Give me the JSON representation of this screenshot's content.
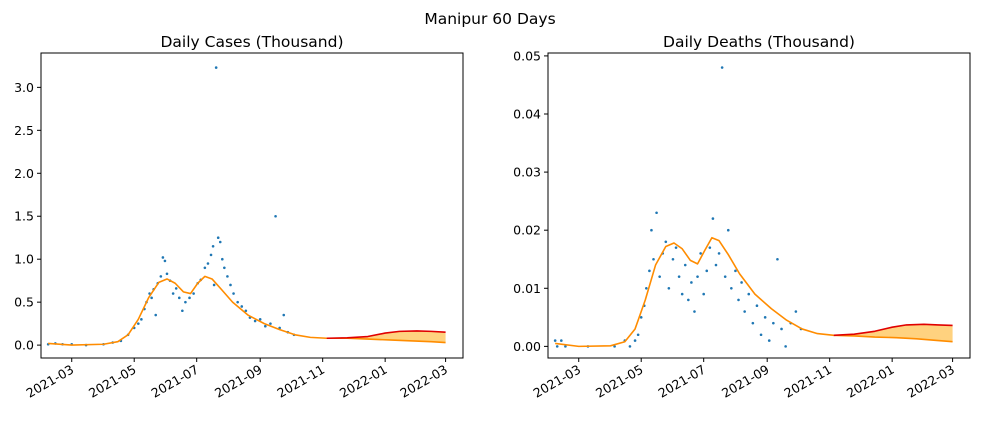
{
  "suptitle": "Manipur 60 Days",
  "colors": {
    "points": "#1f77b4",
    "fit": "#ff8c00",
    "upper_forecast": "#e00000",
    "band_fill": "#ffd27f",
    "axes": "#000000"
  },
  "chart_data": [
    {
      "type": "scatter",
      "title": "Daily Cases (Thousand)",
      "xlabel": "",
      "ylabel": "",
      "x_ticks": [
        "2021-03",
        "2021-05",
        "2021-07",
        "2021-09",
        "2021-11",
        "2022-01",
        "2022-03"
      ],
      "y_ticks": [
        0.0,
        0.5,
        1.0,
        1.5,
        2.0,
        2.5,
        3.0
      ],
      "y_tick_labels": [
        "0.0",
        "0.5",
        "1.0",
        "1.5",
        "2.0",
        "2.5",
        "3.0"
      ],
      "xlim": [
        "2021-01-30",
        "2022-03-18"
      ],
      "ylim": [
        -0.15,
        3.4
      ],
      "grid": false,
      "series": [
        {
          "kind": "scatter",
          "points": [
            [
              "2021-02-06",
              0.01
            ],
            [
              "2021-02-13",
              0.02
            ],
            [
              "2021-02-20",
              0.01
            ],
            [
              "2021-03-01",
              0.01
            ],
            [
              "2021-03-15",
              0.0
            ],
            [
              "2021-04-01",
              0.01
            ],
            [
              "2021-04-10",
              0.03
            ],
            [
              "2021-04-18",
              0.05
            ],
            [
              "2021-04-25",
              0.12
            ],
            [
              "2021-05-01",
              0.2
            ],
            [
              "2021-05-05",
              0.25
            ],
            [
              "2021-05-08",
              0.3
            ],
            [
              "2021-05-11",
              0.42
            ],
            [
              "2021-05-13",
              0.5
            ],
            [
              "2021-05-16",
              0.6
            ],
            [
              "2021-05-18",
              0.55
            ],
            [
              "2021-05-20",
              0.65
            ],
            [
              "2021-05-22",
              0.35
            ],
            [
              "2021-05-24",
              0.72
            ],
            [
              "2021-05-27",
              0.8
            ],
            [
              "2021-05-29",
              1.02
            ],
            [
              "2021-05-31",
              0.98
            ],
            [
              "2021-06-02",
              0.83
            ],
            [
              "2021-06-05",
              0.75
            ],
            [
              "2021-06-08",
              0.6
            ],
            [
              "2021-06-11",
              0.66
            ],
            [
              "2021-06-14",
              0.55
            ],
            [
              "2021-06-17",
              0.4
            ],
            [
              "2021-06-20",
              0.5
            ],
            [
              "2021-06-24",
              0.55
            ],
            [
              "2021-06-28",
              0.6
            ],
            [
              "2021-07-02",
              0.72
            ],
            [
              "2021-07-05",
              0.76
            ],
            [
              "2021-07-09",
              0.9
            ],
            [
              "2021-07-12",
              0.95
            ],
            [
              "2021-07-15",
              1.05
            ],
            [
              "2021-07-17",
              1.15
            ],
            [
              "2021-07-18",
              0.7
            ],
            [
              "2021-07-20",
              3.23
            ],
            [
              "2021-07-22",
              1.25
            ],
            [
              "2021-07-24",
              1.2
            ],
            [
              "2021-07-26",
              1.0
            ],
            [
              "2021-07-28",
              0.9
            ],
            [
              "2021-07-31",
              0.8
            ],
            [
              "2021-08-03",
              0.7
            ],
            [
              "2021-08-06",
              0.6
            ],
            [
              "2021-08-10",
              0.5
            ],
            [
              "2021-08-14",
              0.45
            ],
            [
              "2021-08-18",
              0.4
            ],
            [
              "2021-08-22",
              0.32
            ],
            [
              "2021-08-27",
              0.28
            ],
            [
              "2021-09-01",
              0.3
            ],
            [
              "2021-09-06",
              0.22
            ],
            [
              "2021-09-11",
              0.25
            ],
            [
              "2021-09-16",
              1.5
            ],
            [
              "2021-09-20",
              0.2
            ],
            [
              "2021-09-24",
              0.35
            ],
            [
              "2021-09-28",
              0.15
            ],
            [
              "2021-10-04",
              0.12
            ]
          ]
        },
        {
          "kind": "line",
          "name": "",
          "points": [
            [
              "2021-02-06",
              0.02
            ],
            [
              "2021-03-01",
              0.0
            ],
            [
              "2021-04-01",
              0.01
            ],
            [
              "2021-04-15",
              0.04
            ],
            [
              "2021-04-25",
              0.12
            ],
            [
              "2021-05-05",
              0.3
            ],
            [
              "2021-05-15",
              0.55
            ],
            [
              "2021-05-25",
              0.73
            ],
            [
              "2021-06-02",
              0.77
            ],
            [
              "2021-06-10",
              0.72
            ],
            [
              "2021-06-18",
              0.62
            ],
            [
              "2021-06-25",
              0.6
            ],
            [
              "2021-07-02",
              0.72
            ],
            [
              "2021-07-09",
              0.8
            ],
            [
              "2021-07-16",
              0.77
            ],
            [
              "2021-07-25",
              0.65
            ],
            [
              "2021-08-05",
              0.5
            ],
            [
              "2021-08-20",
              0.35
            ],
            [
              "2021-09-05",
              0.25
            ],
            [
              "2021-09-20",
              0.18
            ],
            [
              "2021-10-05",
              0.12
            ],
            [
              "2021-10-20",
              0.09
            ],
            [
              "2021-11-05",
              0.08
            ],
            [
              "2021-11-25",
              0.08
            ],
            [
              "2021-12-15",
              0.07
            ],
            [
              "2022-01-05",
              0.06
            ],
            [
              "2022-01-25",
              0.05
            ],
            [
              "2022-02-15",
              0.04
            ],
            [
              "2022-03-01",
              0.03
            ]
          ]
        },
        {
          "kind": "line",
          "name": "",
          "points": [
            [
              "2021-11-05",
              0.08
            ],
            [
              "2021-11-25",
              0.085
            ],
            [
              "2021-12-15",
              0.1
            ],
            [
              "2022-01-01",
              0.14
            ],
            [
              "2022-01-15",
              0.16
            ],
            [
              "2022-02-01",
              0.165
            ],
            [
              "2022-02-15",
              0.16
            ],
            [
              "2022-03-01",
              0.15
            ]
          ]
        }
      ]
    },
    {
      "type": "scatter",
      "title": "Daily Deaths (Thousand)",
      "xlabel": "",
      "ylabel": "",
      "x_ticks": [
        "2021-03",
        "2021-05",
        "2021-07",
        "2021-09",
        "2021-11",
        "2022-01",
        "2022-03"
      ],
      "y_ticks": [
        0.0,
        0.01,
        0.02,
        0.03,
        0.04,
        0.05
      ],
      "y_tick_labels": [
        "0.00",
        "0.01",
        "0.02",
        "0.03",
        "0.04",
        "0.05"
      ],
      "xlim": [
        "2021-01-30",
        "2022-03-18"
      ],
      "ylim": [
        -0.002,
        0.0505
      ],
      "grid": false,
      "series": [
        {
          "kind": "scatter",
          "points": [
            [
              "2021-02-06",
              0.001
            ],
            [
              "2021-02-08",
              0.0
            ],
            [
              "2021-02-12",
              0.001
            ],
            [
              "2021-02-16",
              0.0
            ],
            [
              "2021-03-10",
              0.0
            ],
            [
              "2021-04-05",
              0.0
            ],
            [
              "2021-04-15",
              0.001
            ],
            [
              "2021-04-20",
              0.0
            ],
            [
              "2021-04-25",
              0.001
            ],
            [
              "2021-04-28",
              0.002
            ],
            [
              "2021-05-01",
              0.005
            ],
            [
              "2021-05-04",
              0.007
            ],
            [
              "2021-05-06",
              0.01
            ],
            [
              "2021-05-09",
              0.013
            ],
            [
              "2021-05-11",
              0.02
            ],
            [
              "2021-05-13",
              0.015
            ],
            [
              "2021-05-16",
              0.023
            ],
            [
              "2021-05-19",
              0.012
            ],
            [
              "2021-05-22",
              0.016
            ],
            [
              "2021-05-25",
              0.018
            ],
            [
              "2021-05-28",
              0.01
            ],
            [
              "2021-06-01",
              0.015
            ],
            [
              "2021-06-04",
              0.017
            ],
            [
              "2021-06-07",
              0.012
            ],
            [
              "2021-06-10",
              0.009
            ],
            [
              "2021-06-13",
              0.014
            ],
            [
              "2021-06-16",
              0.008
            ],
            [
              "2021-06-19",
              0.011
            ],
            [
              "2021-06-22",
              0.006
            ],
            [
              "2021-06-25",
              0.012
            ],
            [
              "2021-06-28",
              0.016
            ],
            [
              "2021-07-01",
              0.009
            ],
            [
              "2021-07-04",
              0.013
            ],
            [
              "2021-07-07",
              0.017
            ],
            [
              "2021-07-10",
              0.022
            ],
            [
              "2021-07-13",
              0.014
            ],
            [
              "2021-07-16",
              0.016
            ],
            [
              "2021-07-19",
              0.048
            ],
            [
              "2021-07-22",
              0.012
            ],
            [
              "2021-07-25",
              0.02
            ],
            [
              "2021-07-28",
              0.01
            ],
            [
              "2021-08-01",
              0.013
            ],
            [
              "2021-08-04",
              0.008
            ],
            [
              "2021-08-07",
              0.011
            ],
            [
              "2021-08-10",
              0.006
            ],
            [
              "2021-08-14",
              0.009
            ],
            [
              "2021-08-18",
              0.004
            ],
            [
              "2021-08-22",
              0.007
            ],
            [
              "2021-08-26",
              0.002
            ],
            [
              "2021-08-30",
              0.005
            ],
            [
              "2021-09-03",
              0.001
            ],
            [
              "2021-09-07",
              0.004
            ],
            [
              "2021-09-11",
              0.015
            ],
            [
              "2021-09-15",
              0.003
            ],
            [
              "2021-09-19",
              0.0
            ],
            [
              "2021-09-24",
              0.004
            ],
            [
              "2021-09-29",
              0.006
            ],
            [
              "2021-10-04",
              0.003
            ]
          ]
        },
        {
          "kind": "line",
          "name": "",
          "points": [
            [
              "2021-02-06",
              0.0005
            ],
            [
              "2021-03-01",
              0.0
            ],
            [
              "2021-04-01",
              0.0001
            ],
            [
              "2021-04-15",
              0.0008
            ],
            [
              "2021-04-25",
              0.003
            ],
            [
              "2021-05-05",
              0.008
            ],
            [
              "2021-05-15",
              0.014
            ],
            [
              "2021-05-25",
              0.0172
            ],
            [
              "2021-06-02",
              0.0178
            ],
            [
              "2021-06-10",
              0.0168
            ],
            [
              "2021-06-18",
              0.0148
            ],
            [
              "2021-06-25",
              0.0142
            ],
            [
              "2021-07-02",
              0.0165
            ],
            [
              "2021-07-09",
              0.0187
            ],
            [
              "2021-07-16",
              0.0182
            ],
            [
              "2021-07-25",
              0.0158
            ],
            [
              "2021-08-05",
              0.0125
            ],
            [
              "2021-08-20",
              0.009
            ],
            [
              "2021-09-05",
              0.0065
            ],
            [
              "2021-09-20",
              0.0045
            ],
            [
              "2021-10-05",
              0.003
            ],
            [
              "2021-10-20",
              0.0022
            ],
            [
              "2021-11-05",
              0.0019
            ],
            [
              "2021-11-25",
              0.0018
            ],
            [
              "2021-12-15",
              0.0016
            ],
            [
              "2022-01-05",
              0.0015
            ],
            [
              "2022-01-25",
              0.0013
            ],
            [
              "2022-02-15",
              0.001
            ],
            [
              "2022-03-01",
              0.0008
            ]
          ]
        },
        {
          "kind": "line",
          "name": "",
          "points": [
            [
              "2021-11-05",
              0.0019
            ],
            [
              "2021-11-25",
              0.0021
            ],
            [
              "2021-12-15",
              0.0026
            ],
            [
              "2022-01-01",
              0.0033
            ],
            [
              "2022-01-15",
              0.0037
            ],
            [
              "2022-02-01",
              0.0038
            ],
            [
              "2022-02-15",
              0.0037
            ],
            [
              "2022-03-01",
              0.0036
            ]
          ]
        }
      ]
    }
  ]
}
